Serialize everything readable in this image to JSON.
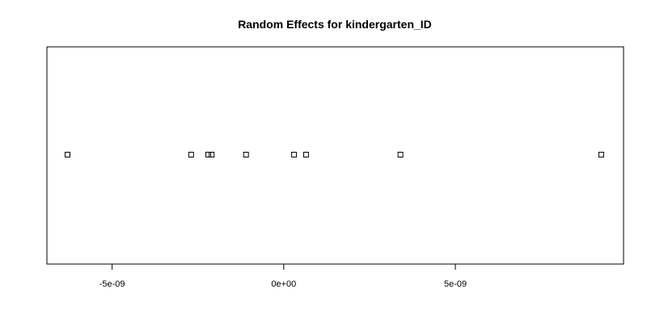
{
  "chart_data": {
    "type": "scatter",
    "title": "Random Effects for kindergarten_ID",
    "xlabel": "",
    "ylabel": "",
    "xlim": [
      -6.9e-09,
      9.9e-09
    ],
    "grid": false,
    "legend": "none",
    "point_shape": "open-square",
    "x_ticks": [
      {
        "value": -5e-09,
        "label": "-5e-09"
      },
      {
        "value": 0,
        "label": "0e+00"
      },
      {
        "value": 5e-09,
        "label": "5e-09"
      }
    ],
    "points": [
      {
        "x": -6.3e-09,
        "y": 1
      },
      {
        "x": -2.7e-09,
        "y": 1
      },
      {
        "x": -2.2e-09,
        "y": 1
      },
      {
        "x": -2.1e-09,
        "y": 1
      },
      {
        "x": -1.1e-09,
        "y": 1
      },
      {
        "x": 3e-10,
        "y": 1
      },
      {
        "x": 6.5e-10,
        "y": 1
      },
      {
        "x": 3.4e-09,
        "y": 1
      },
      {
        "x": 9.25e-09,
        "y": 1
      }
    ],
    "colors": {
      "axis": "#000000",
      "marker": "#000000",
      "background": "#ffffff"
    }
  }
}
